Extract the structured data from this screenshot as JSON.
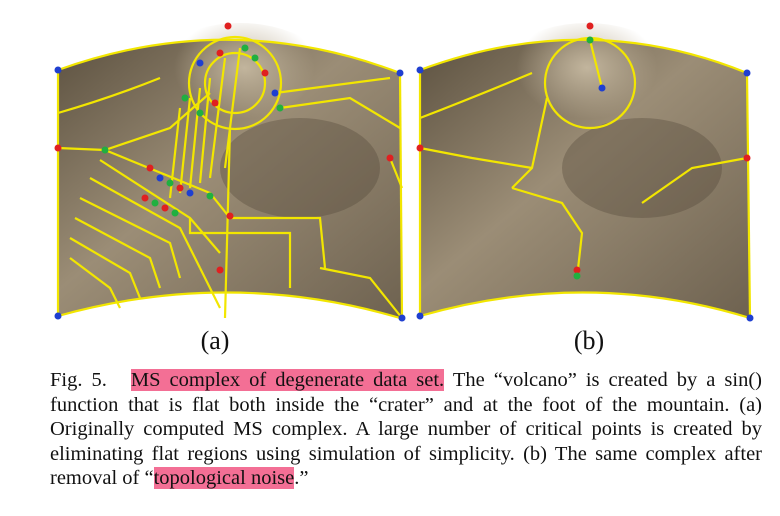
{
  "figure": {
    "subfigure_a_label": "(a)",
    "subfigure_b_label": "(b)"
  },
  "caption": {
    "fig_label": "Fig. 5.",
    "highlight_1": "MS complex of degenerate data set.",
    "text_1": " The “volcano” is created by a sin() function that is flat both inside the “crater” and at the foot of the mountain. (a) Originally computed MS complex. A large number of critical points is created by eliminating flat regions using simulation of simplicity. (b) The same complex after removal of “",
    "highlight_2": "topological noise",
    "text_2": ".”"
  },
  "colors": {
    "highlight": "#f36f95",
    "surface": "#8a7c68",
    "edges": "#f2e600",
    "minima": "#1f3fd0",
    "saddles": "#20b040",
    "maxima": "#e02020"
  }
}
